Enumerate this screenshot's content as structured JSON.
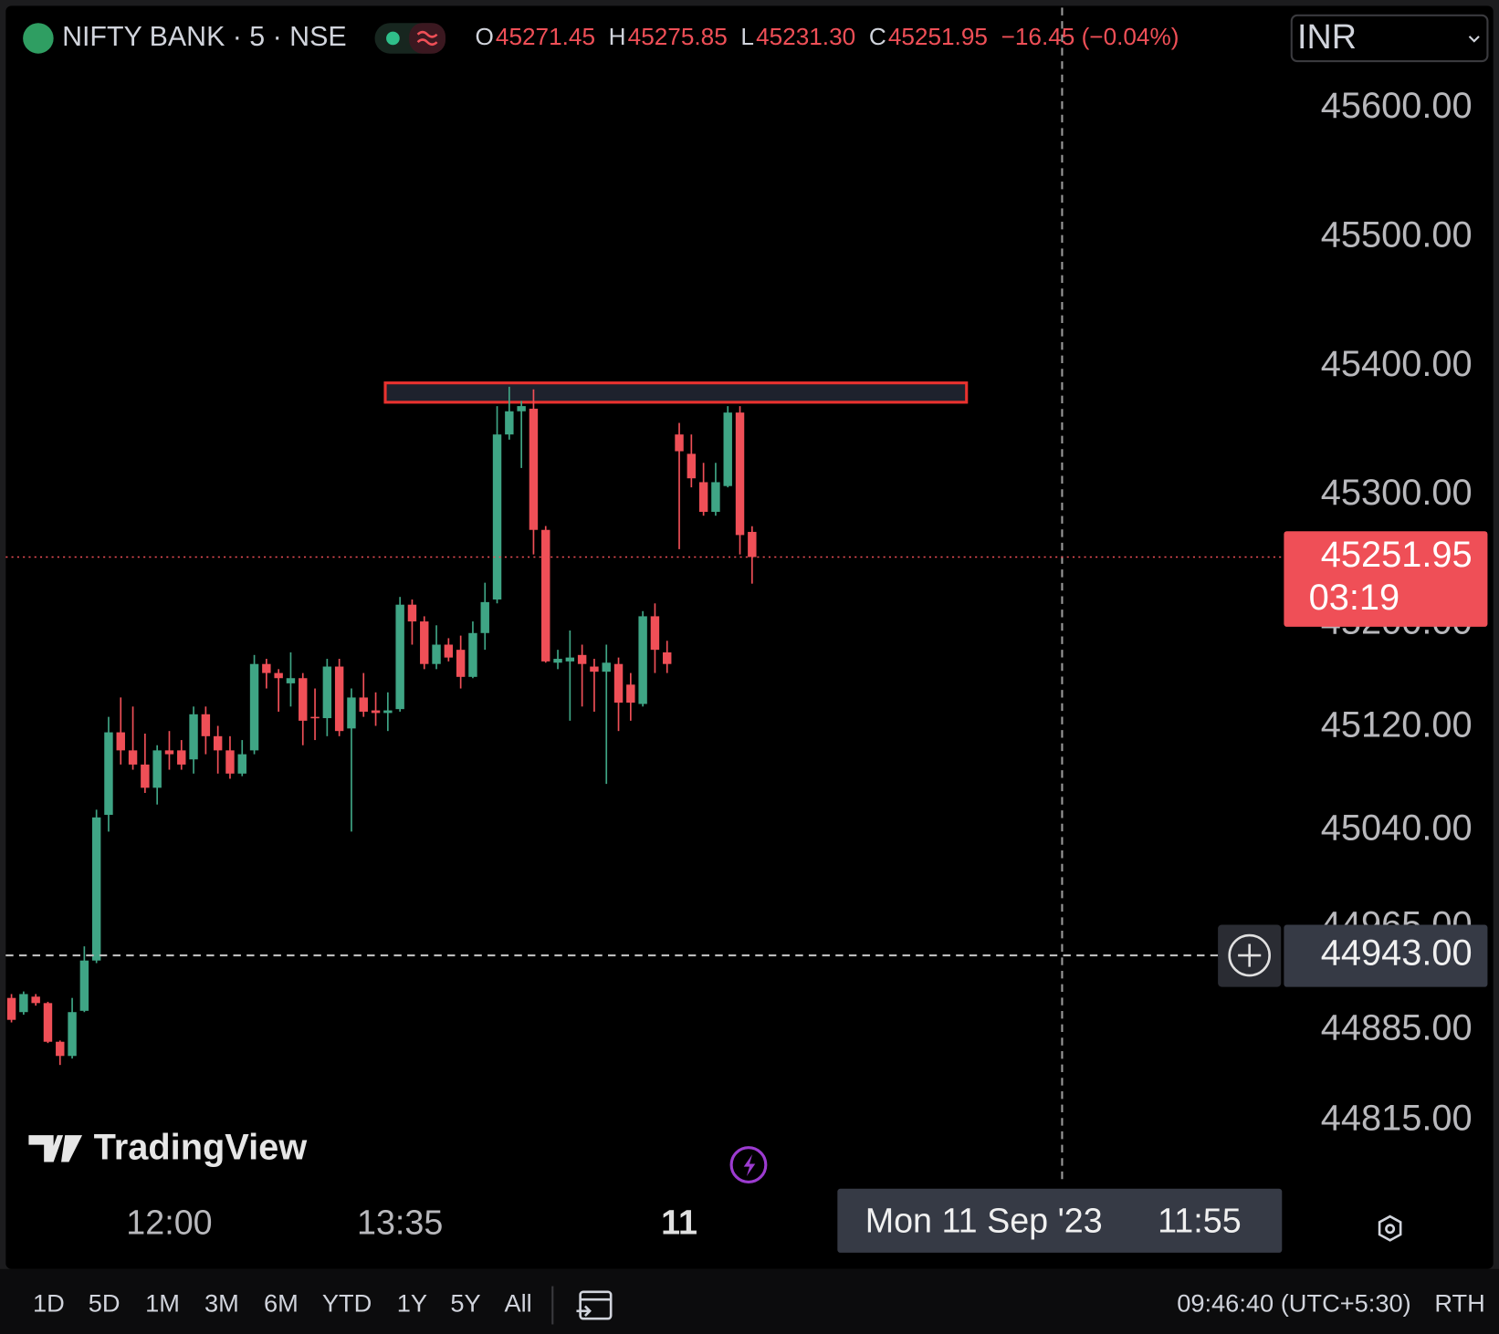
{
  "header": {
    "symbol": "NIFTY BANK · 5 · NSE",
    "legend": [
      {
        "label": "O",
        "value": "45271.45"
      },
      {
        "label": "H",
        "value": "45275.85"
      },
      {
        "label": "L",
        "value": "45231.30"
      },
      {
        "label": "C",
        "value": "45251.95"
      }
    ],
    "change": "−16.45 (−0.04%)",
    "currency": "INR"
  },
  "chart_data": {
    "type": "candlestick",
    "up_color": "#3fa585",
    "down_color": "#ef4f57",
    "grid": false,
    "categories": [
      null,
      null,
      null,
      null,
      null,
      null,
      null,
      null,
      null,
      null,
      null,
      null,
      null,
      "12:00",
      null,
      null,
      null,
      null,
      null,
      null,
      null,
      null,
      null,
      null,
      null,
      null,
      null,
      null,
      null,
      null,
      null,
      null,
      "13:35",
      null,
      null,
      null,
      null,
      null,
      null,
      null,
      null,
      null,
      null,
      null,
      null,
      null,
      null,
      null,
      null,
      null,
      null,
      null,
      null,
      null,
      null,
      "11",
      null,
      null,
      null,
      null,
      null,
      null
    ],
    "open": [
      44910,
      44899,
      44911,
      44906,
      44876,
      44865,
      44900,
      44939,
      45052,
      45116,
      45102,
      45091,
      45073,
      45102,
      45102,
      45095,
      45130,
      45113,
      45102,
      45084,
      45102,
      45169,
      45162,
      45154,
      45158,
      45128,
      45127,
      45167,
      45119,
      45143,
      45133,
      45131,
      45134,
      45215,
      45202,
      45169,
      45184,
      45180,
      45159,
      45193,
      45219,
      45347,
      45365,
      45367,
      45273,
      45170,
      45171,
      45176,
      45167,
      45163,
      45169,
      45153,
      45138,
      45206,
      45178,
      45347,
      45332,
      45310,
      45287,
      45307,
      45364,
      45271.45
    ],
    "high": [
      44913,
      44915,
      44913,
      44907,
      44877,
      44910,
      44950,
      45056,
      45128,
      45143,
      45136,
      45115,
      45106,
      45117,
      45110,
      45136,
      45136,
      45121,
      45113,
      45110,
      45176,
      45173,
      45165,
      45178,
      45162,
      45150,
      45173,
      45173,
      45150,
      45162,
      45147,
      45147,
      45221,
      45219,
      45206,
      45199,
      45189,
      45191,
      45202,
      45232,
      45369,
      45384,
      45373,
      45382,
      45276,
      45180,
      45195,
      45184,
      45173,
      45184,
      45174,
      45162,
      45210,
      45216,
      45187,
      45356,
      45347,
      45325,
      45325,
      45369,
      45369,
      45275.85
    ],
    "low": [
      44891,
      44897,
      44904,
      44875,
      44858,
      44863,
      44899,
      44937,
      45039,
      45091,
      45087,
      45069,
      45060,
      45087,
      45087,
      45084,
      45099,
      45084,
      45080,
      45082,
      45099,
      45150,
      45132,
      45136,
      45106,
      45110,
      45113,
      45113,
      45039,
      45128,
      45121,
      45117,
      45132,
      45184,
      45165,
      45165,
      45171,
      45150,
      45158,
      45180,
      45216,
      45343,
      45321,
      45254,
      45170,
      45165,
      45125,
      45136,
      45132,
      45076,
      45117,
      45125,
      45136,
      45162,
      45162,
      45258,
      45306,
      45284,
      45284,
      45306,
      45254,
      45231.3
    ],
    "close": [
      44893,
      44913,
      44906,
      44876,
      44865,
      44899,
      44939,
      45050,
      45116,
      45102,
      45091,
      45073,
      45102,
      45099,
      45091,
      45130,
      45113,
      45102,
      45084,
      45099,
      45169,
      45162,
      45158,
      45158,
      45125,
      45127,
      45167,
      45117,
      45143,
      45132,
      45131,
      45133,
      45215,
      45202,
      45169,
      45184,
      45174,
      45159,
      45193,
      45217,
      45347,
      45365,
      45369,
      45273,
      45171,
      45173,
      45174,
      45169,
      45163,
      45170,
      45139,
      45139,
      45206,
      45180,
      45169,
      45334,
      45313,
      45287,
      45310,
      45364,
      45269,
      45251.95
    ],
    "ylim": [
      44765,
      45678
    ],
    "yticks": [
      {
        "value": 45600,
        "label": "45600.00"
      },
      {
        "value": 45500,
        "label": "45500.00"
      },
      {
        "value": 45400,
        "label": "45400.00"
      },
      {
        "value": 45300,
        "label": "45300.00"
      },
      {
        "value": 45200,
        "label": "45200.00"
      },
      {
        "value": 45120,
        "label": "45120.00"
      },
      {
        "value": 45040,
        "label": "45040.00"
      },
      {
        "value": 44965,
        "label": "44965.00"
      },
      {
        "value": 44885,
        "label": "44885.00"
      },
      {
        "value": 44815,
        "label": "44815.00"
      }
    ],
    "zone": [
      45372,
      45387
    ],
    "countdown": "03:19",
    "crosshair": {
      "price": {
        "value": 44943,
        "label": "44943.00"
      },
      "date": "Mon 11 Sep '23",
      "time": "11:55"
    },
    "watermark": "TradingView"
  },
  "footer": {
    "ranges": [
      "1D",
      "5D",
      "1M",
      "3M",
      "6M",
      "YTD",
      "1Y",
      "5Y",
      "All"
    ],
    "clock": "09:46:40 (UTC+5:30)",
    "session": "RTH"
  }
}
